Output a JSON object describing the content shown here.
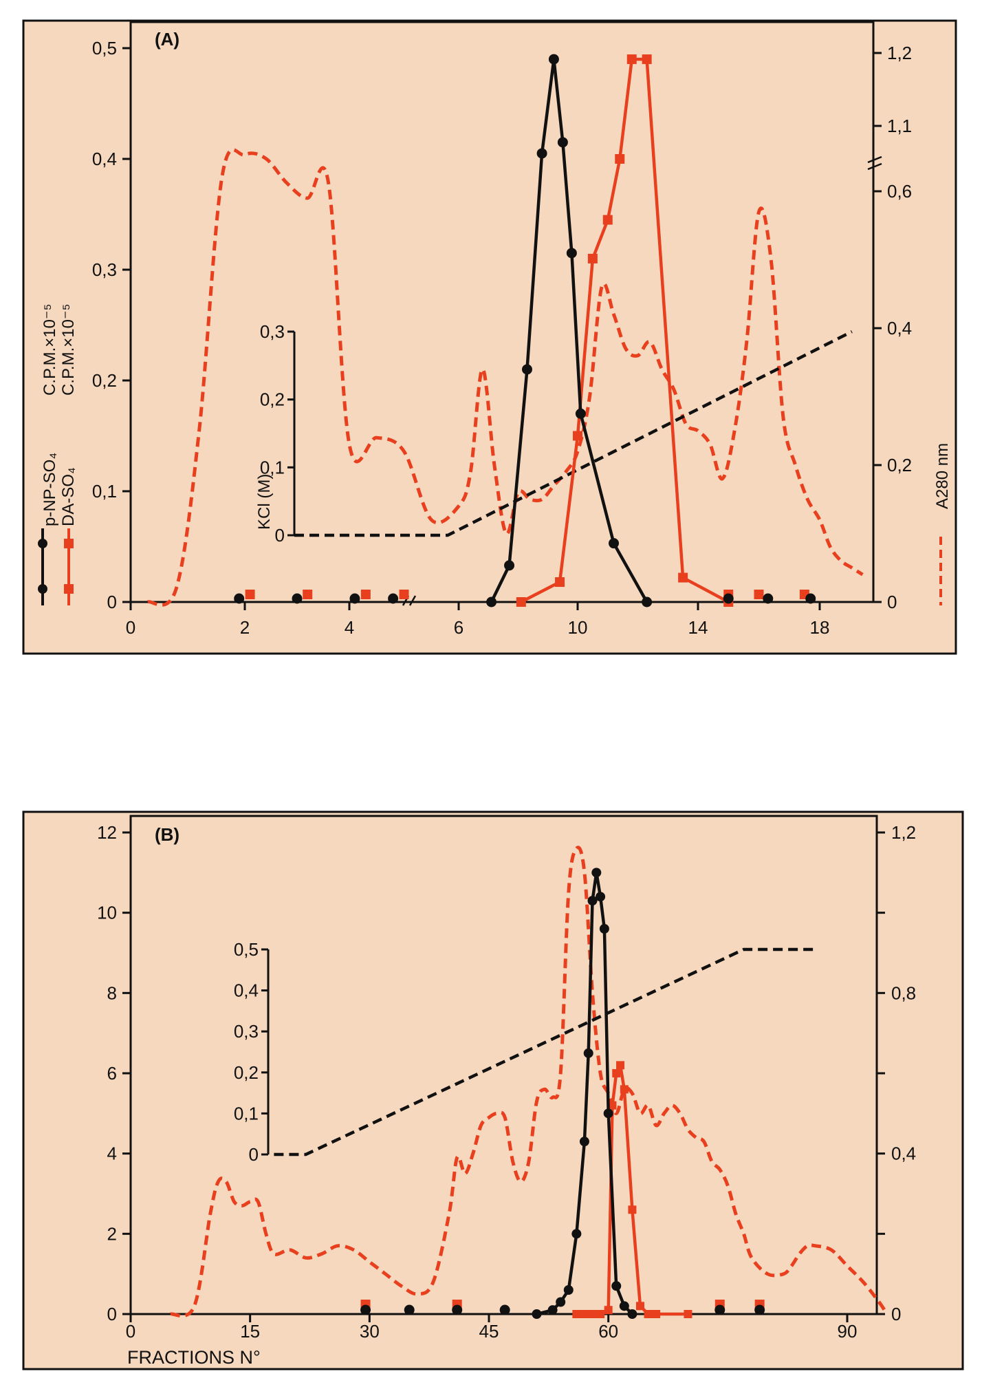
{
  "chart_data": [
    {
      "type": "line",
      "panel": "(A)",
      "x_ticks": [
        "0",
        "2",
        "4",
        "6",
        "10",
        "14",
        "18"
      ],
      "left_axis": {
        "title_lines": [
          "C.P.M.×10⁻⁵",
          "C.P.M.×10⁻⁵"
        ],
        "ticks": [
          "0",
          "0,1",
          "0,2",
          "0,3",
          "0,4",
          "0,5"
        ],
        "range": [
          0,
          0.5
        ]
      },
      "right_axis": {
        "title": "A280 nm",
        "ticks": [
          "0",
          "0,2",
          "0,4",
          "0,6",
          "1,1",
          "1,2"
        ]
      },
      "inset_axis": {
        "title": "KCl (M)",
        "ticks": [
          "0",
          "0,1",
          "0,2",
          "0,3"
        ],
        "range": [
          0,
          0.3
        ]
      },
      "legend": [
        {
          "name": "p-NP-SO₄",
          "color": "#111111",
          "marker": "circle"
        },
        {
          "name": "DA-SO₄",
          "color": "#e8401e",
          "marker": "square"
        }
      ],
      "series": [
        {
          "name": "p-NP-SO₄",
          "axis": "left",
          "x": [
            7.1,
            7.7,
            8.3,
            8.8,
            9.2,
            9.5,
            9.8,
            10.1,
            11.2,
            12.3
          ],
          "y": [
            0.0,
            0.033,
            0.21,
            0.405,
            0.49,
            0.415,
            0.315,
            0.17,
            0.053,
            0.0
          ]
        },
        {
          "name": "DA-SO₄",
          "axis": "left",
          "x": [
            8.1,
            9.4,
            10.0,
            10.5,
            11.0,
            11.4,
            11.8,
            12.3,
            13.5,
            15.0
          ],
          "y": [
            0.0,
            0.018,
            0.15,
            0.31,
            0.345,
            0.4,
            0.49,
            0.49,
            0.022,
            0.0
          ]
        },
        {
          "name": "A280 nm",
          "axis": "right",
          "x": [
            0.3,
            0.8,
            1.2,
            1.6,
            2.0,
            2.4,
            2.8,
            3.2,
            3.6,
            4.0,
            4.5,
            5.0,
            5.5,
            6.0,
            6.4,
            6.8,
            7.2,
            7.6,
            8.0,
            8.4,
            8.8,
            9.2,
            9.6,
            10.0,
            10.4,
            10.8,
            11.2,
            11.6,
            12.0,
            12.4,
            12.8,
            13.2,
            13.6,
            14.0,
            14.4,
            14.8,
            15.2,
            15.6,
            16.0,
            16.4,
            16.8,
            17.2,
            17.6,
            18.0,
            18.4,
            18.8,
            19.2,
            19.6
          ],
          "y": [
            0.0,
            0.02,
            0.25,
            0.65,
            0.79,
            0.75,
            0.63,
            0.59,
            0.63,
            0.23,
            0.24,
            0.22,
            0.12,
            0.14,
            0.19,
            0.34,
            0.2,
            0.1,
            0.16,
            0.15,
            0.15,
            0.17,
            0.19,
            0.22,
            0.3,
            0.46,
            0.42,
            0.37,
            0.36,
            0.38,
            0.34,
            0.31,
            0.26,
            0.25,
            0.23,
            0.18,
            0.25,
            0.38,
            0.57,
            0.5,
            0.27,
            0.2,
            0.15,
            0.12,
            0.08,
            0.06,
            0.05,
            0.04
          ]
        },
        {
          "name": "KCl (M)",
          "axis": "inset",
          "x": [
            0.0,
            4.3,
            5.8,
            19.2
          ],
          "y": [
            0.0,
            0.0,
            0.0,
            0.3
          ]
        }
      ],
      "baseline_markers": [
        {
          "series": "p-NP-SO₄",
          "x": [
            1.9,
            3.0,
            4.1,
            4.8,
            15.0,
            16.3,
            17.7
          ]
        },
        {
          "series": "DA-SO₄",
          "x": [
            2.1,
            3.2,
            4.3,
            5.0,
            15.0,
            16.0,
            17.5
          ]
        }
      ]
    },
    {
      "type": "line",
      "panel": "(B)",
      "xlabel": "FRACTIONS N°",
      "x_ticks": [
        "0",
        "15",
        "30",
        "45",
        "60",
        "90"
      ],
      "x_range": [
        0,
        95
      ],
      "left_axis": {
        "ticks": [
          "0",
          "2",
          "4",
          "6",
          "8",
          "10",
          "12"
        ],
        "range": [
          0,
          12
        ]
      },
      "right_axis": {
        "ticks": [
          "0",
          "0,4",
          "0,8",
          "1,2"
        ],
        "range": [
          0,
          1.2
        ]
      },
      "inset_axis": {
        "ticks": [
          "0",
          "0,1",
          "0,2",
          "0,3",
          "0,4",
          "0,5"
        ],
        "range": [
          0,
          0.5
        ]
      },
      "series": [
        {
          "name": "p-NP-SO₄",
          "axis": "left",
          "x": [
            51,
            53,
            54,
            55,
            56,
            57,
            57.5,
            58,
            58.5,
            59,
            59.5,
            60,
            61,
            62,
            63
          ],
          "y": [
            0.0,
            0.1,
            0.3,
            0.6,
            2.0,
            4.3,
            6.5,
            10.3,
            11.0,
            10.4,
            9.6,
            5.0,
            0.7,
            0.2,
            0.0
          ]
        },
        {
          "name": "DA-SO₄",
          "axis": "left",
          "x": [
            56,
            57,
            58,
            59,
            60,
            60.5,
            61,
            61.5,
            62,
            63,
            64,
            65,
            66,
            70
          ],
          "y": [
            0.0,
            0.0,
            0.0,
            0.0,
            0.1,
            5.2,
            6.0,
            6.2,
            5.6,
            2.6,
            0.2,
            0.0,
            0.0,
            0.0
          ]
        },
        {
          "name": "A280 nm",
          "axis": "right",
          "x": [
            5,
            8,
            10,
            11,
            12,
            13,
            14,
            15,
            16,
            17,
            18,
            20,
            22,
            24,
            26,
            28,
            30,
            32,
            34,
            36,
            38,
            40,
            41,
            42,
            43,
            44,
            45,
            46,
            47,
            48,
            49,
            50,
            51,
            52,
            53,
            54,
            55,
            56,
            57,
            58,
            59,
            60,
            61,
            62,
            63,
            64,
            65,
            66,
            67,
            68,
            69,
            70,
            71,
            72,
            73,
            74,
            75,
            76,
            77,
            78,
            80,
            82,
            83,
            84,
            85,
            86,
            88,
            90,
            92,
            94,
            95
          ],
          "y": [
            0.0,
            0.02,
            0.25,
            0.33,
            0.33,
            0.28,
            0.27,
            0.28,
            0.28,
            0.2,
            0.15,
            0.16,
            0.14,
            0.15,
            0.17,
            0.16,
            0.13,
            0.1,
            0.07,
            0.05,
            0.08,
            0.25,
            0.39,
            0.35,
            0.4,
            0.47,
            0.49,
            0.5,
            0.49,
            0.38,
            0.33,
            0.38,
            0.53,
            0.56,
            0.54,
            0.6,
            1.05,
            1.16,
            1.1,
            0.8,
            0.6,
            0.55,
            0.5,
            0.56,
            0.55,
            0.5,
            0.52,
            0.47,
            0.5,
            0.52,
            0.5,
            0.46,
            0.44,
            0.43,
            0.38,
            0.36,
            0.32,
            0.25,
            0.2,
            0.14,
            0.1,
            0.1,
            0.12,
            0.15,
            0.17,
            0.17,
            0.16,
            0.12,
            0.08,
            0.03,
            0.0
          ]
        },
        {
          "name": "KCl (M)",
          "axis": "inset",
          "x": [
            18,
            22,
            77,
            86
          ],
          "y": [
            0.0,
            0.0,
            0.5,
            0.5
          ]
        }
      ],
      "baseline_markers": [
        {
          "series": "p-NP-SO₄",
          "x": [
            29.5,
            35,
            41,
            47,
            74,
            79
          ]
        },
        {
          "series": "DA-SO₄",
          "x": [
            29.5,
            41,
            74,
            79
          ]
        }
      ]
    }
  ]
}
